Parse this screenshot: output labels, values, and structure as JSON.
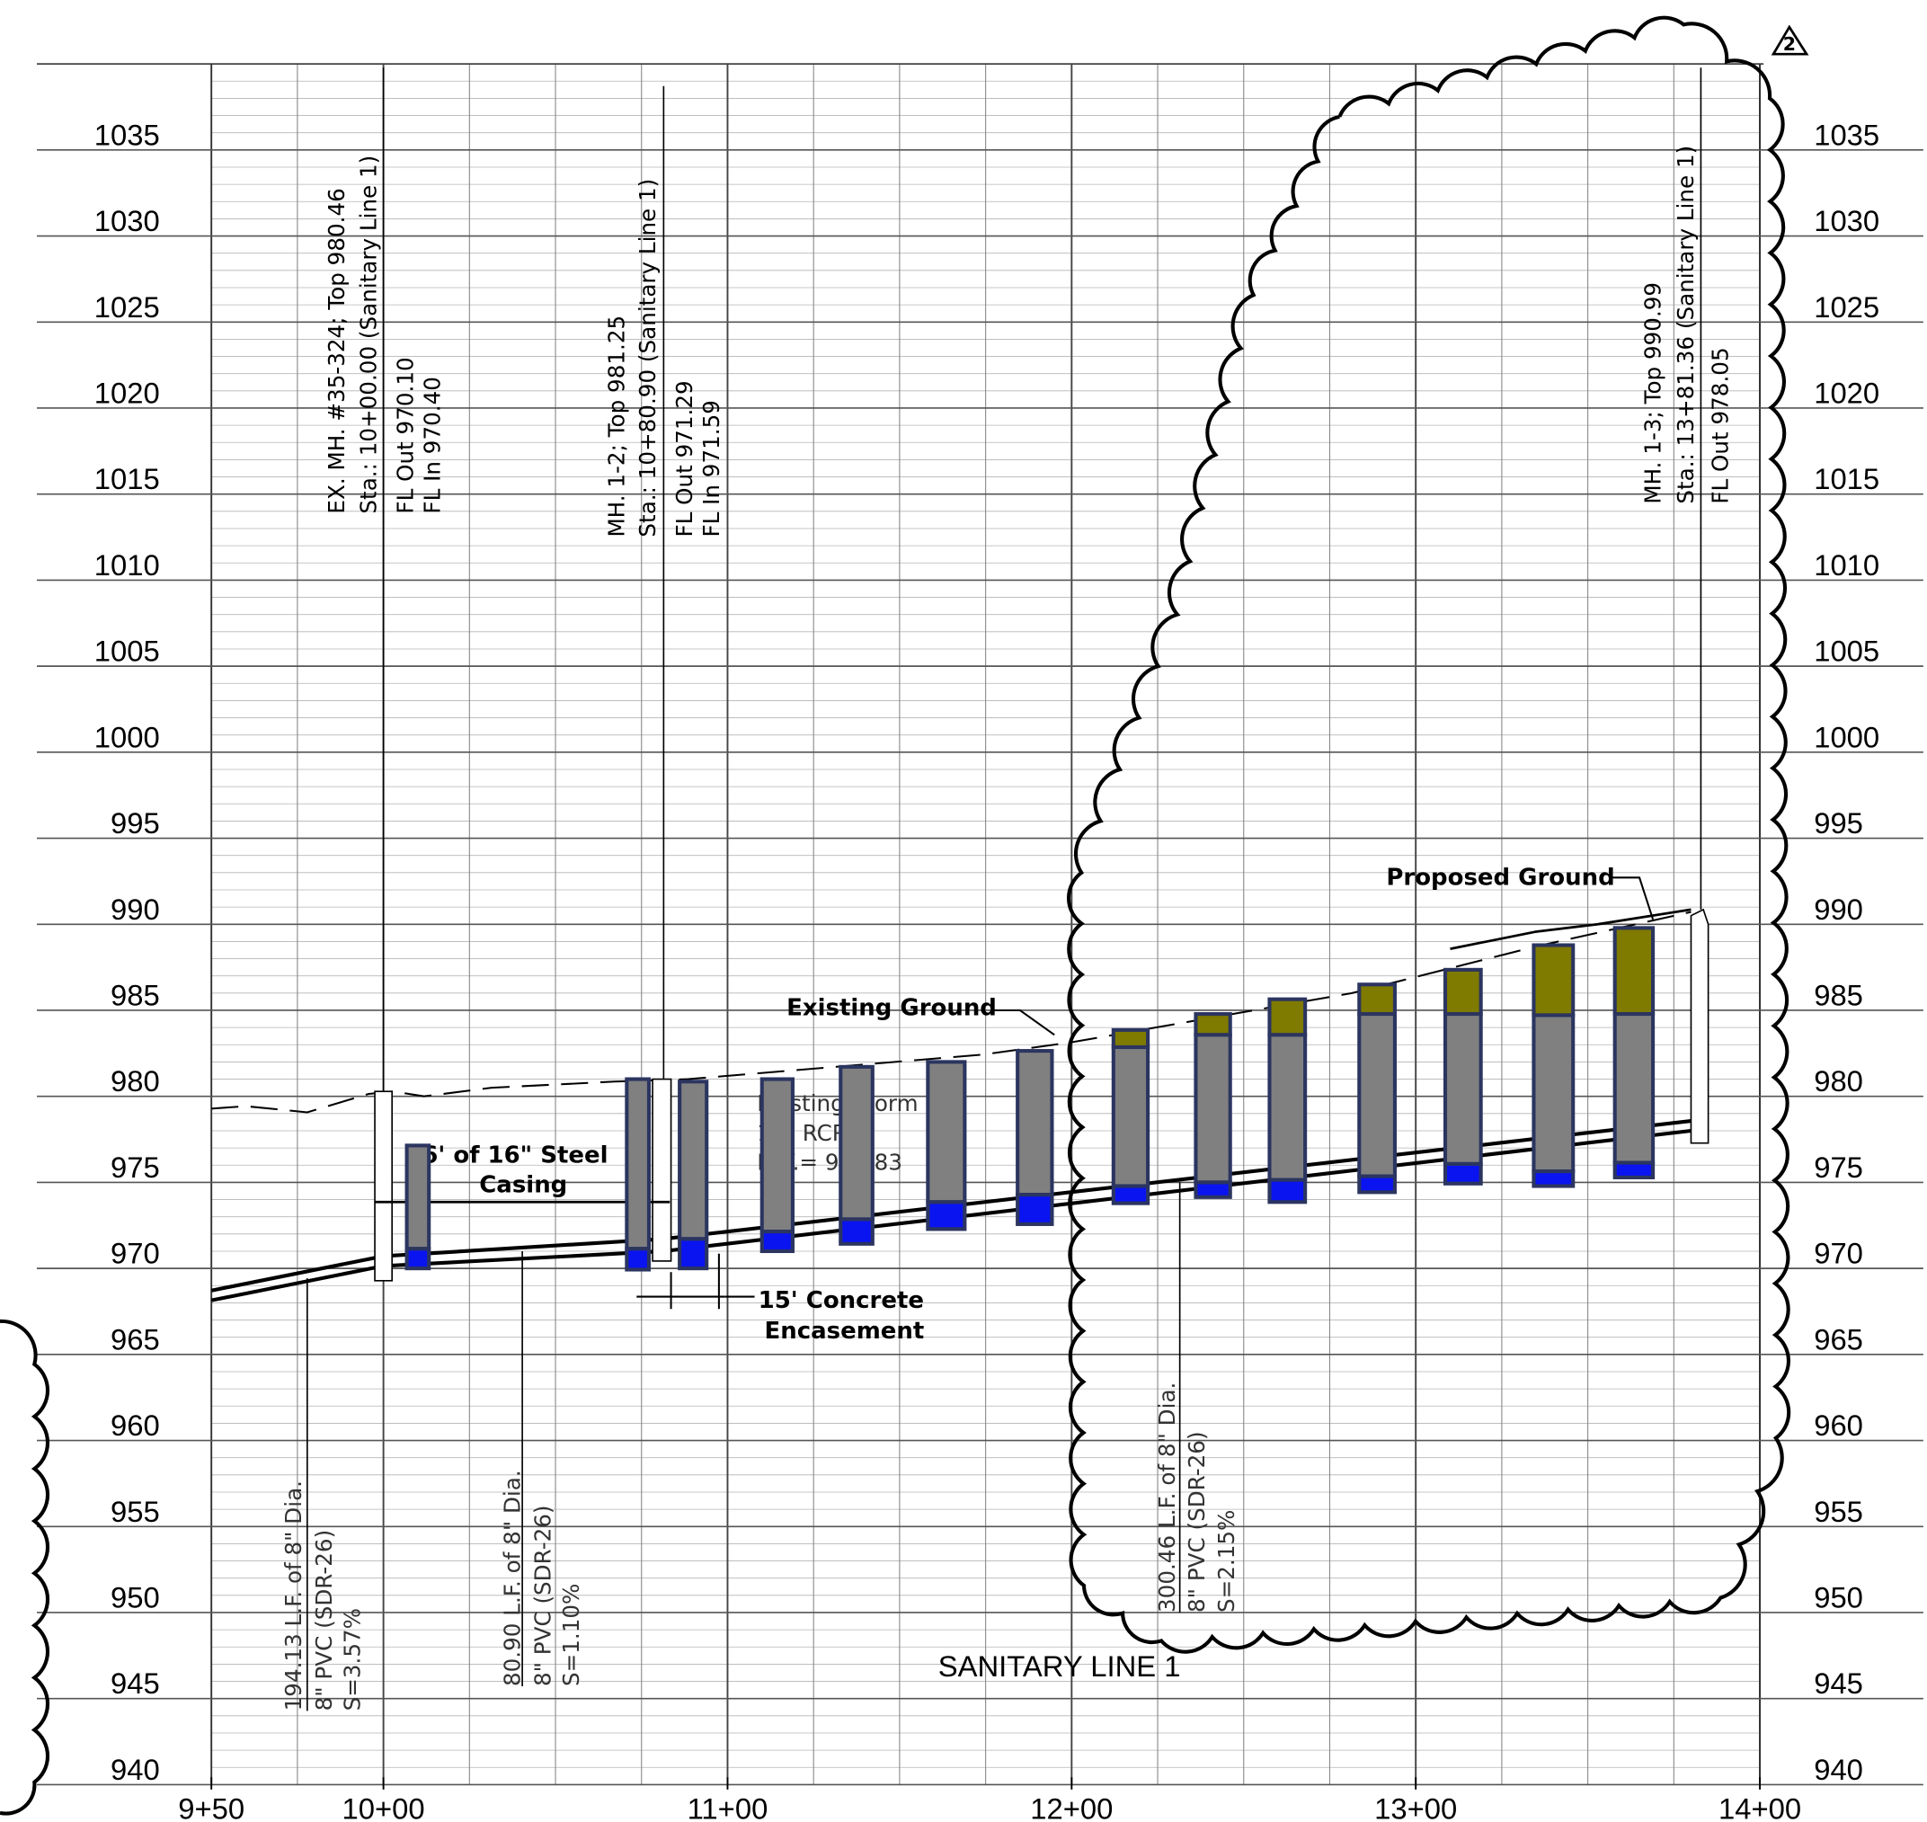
{
  "chart_data": {
    "type": "profile",
    "title": "SANITARY LINE 1",
    "revision": "2",
    "xlim": [
      950,
      1400
    ],
    "ylim": [
      940,
      1040
    ],
    "xticks": [
      {
        "value": 950,
        "label": "9+50"
      },
      {
        "value": 1000,
        "label": "10+00"
      },
      {
        "value": 1100,
        "label": "11+00"
      },
      {
        "value": 1200,
        "label": "12+00"
      },
      {
        "value": 1300,
        "label": "13+00"
      },
      {
        "value": 1400,
        "label": "14+00"
      }
    ],
    "yticks": [
      940,
      945,
      950,
      955,
      960,
      965,
      970,
      975,
      980,
      985,
      990,
      995,
      1000,
      1005,
      1010,
      1015,
      1020,
      1025,
      1030,
      1035
    ],
    "grid": true,
    "annotations": [
      "EX. MH. #35-324; Top 980.46",
      "Sta.: 10+00.00 (Sanitary Line 1)",
      "FL Out 970.10",
      "FL In 970.40",
      "MH. 1-2; Top 981.25",
      "Sta.: 10+80.90 (Sanitary Line 1)",
      "FL Out 971.29",
      "FL In 971.59",
      "MH. 1-3; Top 990.99",
      "Sta.: 13+81.36 (Sanitary Line 1)",
      "FL Out 978.05",
      "194.13 L.F. of 8\" Dia.",
      "8\" PVC (SDR-26)",
      "S=3.57%",
      "80.90 L.F. of 8\" Dia.",
      "8\" PVC (SDR-26)",
      "S=1.10%",
      "300.46 L.F. of 8\" Dia.",
      "8\" PVC (SDR-26)",
      "S=2.15%",
      "Existing Ground",
      "Proposed Ground",
      "15' Concrete",
      "Encasement",
      "86' of 16\" Steel",
      "Casing",
      "Existing Storm",
      "12\" RCP",
      "INV.= 973.83"
    ]
  }
}
